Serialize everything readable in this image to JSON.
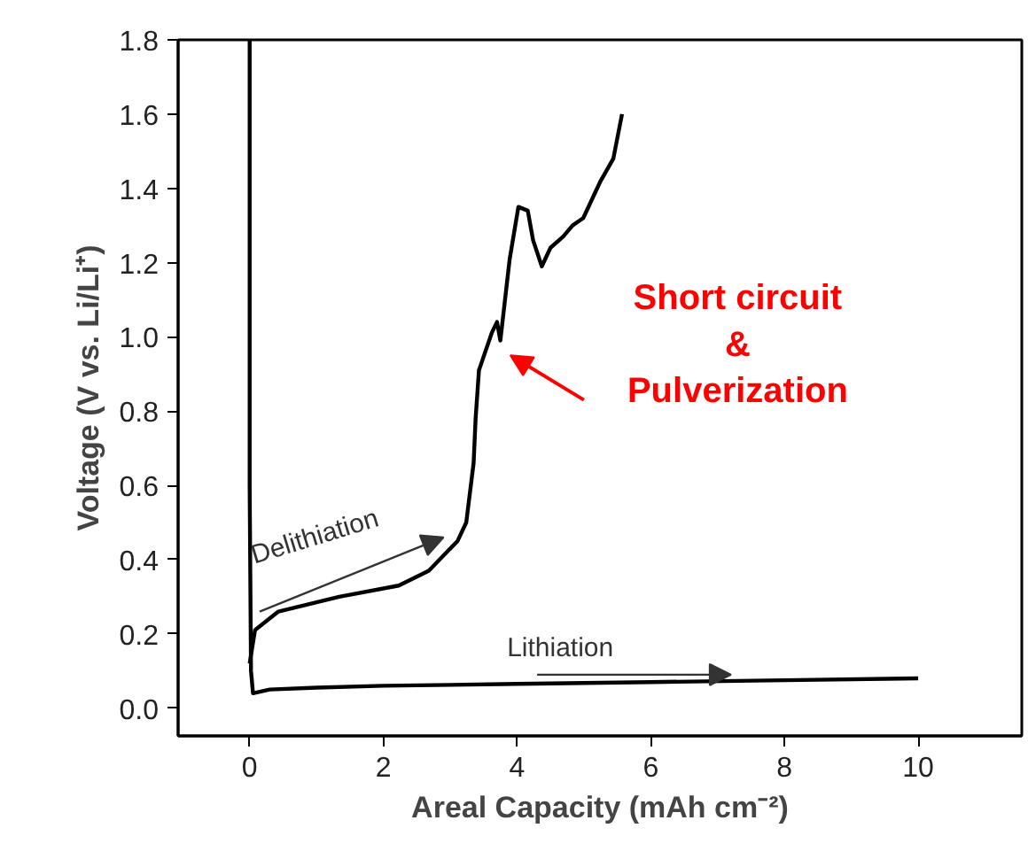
{
  "chart_data": {
    "type": "line",
    "xlabel": "Areal Capacity (mAh cm⁻²)",
    "ylabel": "Voltage (V vs. Li/Li⁺)",
    "xlim": [
      -1.07,
      11.55
    ],
    "ylim": [
      -0.075,
      1.8
    ],
    "xticks": [
      0,
      2,
      4,
      6,
      8,
      10
    ],
    "yticks": [
      {
        "value": 0,
        "label": "0.0"
      },
      {
        "value": 0.2,
        "label": "0.2"
      },
      {
        "value": 0.4,
        "label": "0.4"
      },
      {
        "value": 0.6,
        "label": "0.6"
      },
      {
        "value": 0.8,
        "label": "0.8"
      },
      {
        "value": 1,
        "label": "1.0"
      },
      {
        "value": 1.2,
        "label": "1.2"
      },
      {
        "value": 1.4,
        "label": "1.4"
      },
      {
        "value": 1.6,
        "label": "1.6"
      },
      {
        "value": 1.8,
        "label": "1.8"
      }
    ],
    "grid": false,
    "marker": "none",
    "line_style": "solid",
    "series": [
      {
        "color": "#000000",
        "x": [
          0,
          0,
          0.02,
          0.05,
          0.3,
          1,
          2,
          4,
          6,
          8,
          10
        ],
        "values": [
          1.8,
          0.6,
          0.1,
          0.04,
          0.05,
          0.055,
          0.06,
          0.065,
          0.07,
          0.075,
          0.08
        ]
      },
      {
        "color": "#000000",
        "x": [
          0,
          0.08,
          0.43,
          1.34,
          2.23,
          2.68,
          3.11,
          3.24,
          3.35,
          3.38,
          3.43,
          3.62,
          3.7,
          3.75,
          3.89,
          4.02,
          4.16,
          4.24,
          4.37,
          4.5,
          4.69,
          4.83,
          4.99,
          5.12,
          5.25,
          5.44,
          5.57
        ],
        "values": [
          0.12,
          0.21,
          0.26,
          0.3,
          0.33,
          0.37,
          0.45,
          0.5,
          0.66,
          0.78,
          0.91,
          1.01,
          1.04,
          0.99,
          1.21,
          1.35,
          1.34,
          1.26,
          1.19,
          1.24,
          1.27,
          1.3,
          1.32,
          1.37,
          1.42,
          1.48,
          1.6
        ]
      }
    ],
    "annotations": [
      "Delithiation",
      {
        "text": "Lithiation",
        "x": 7.2,
        "y": 0.09
      },
      "Short circuit\n&\nPulverization"
    ]
  }
}
